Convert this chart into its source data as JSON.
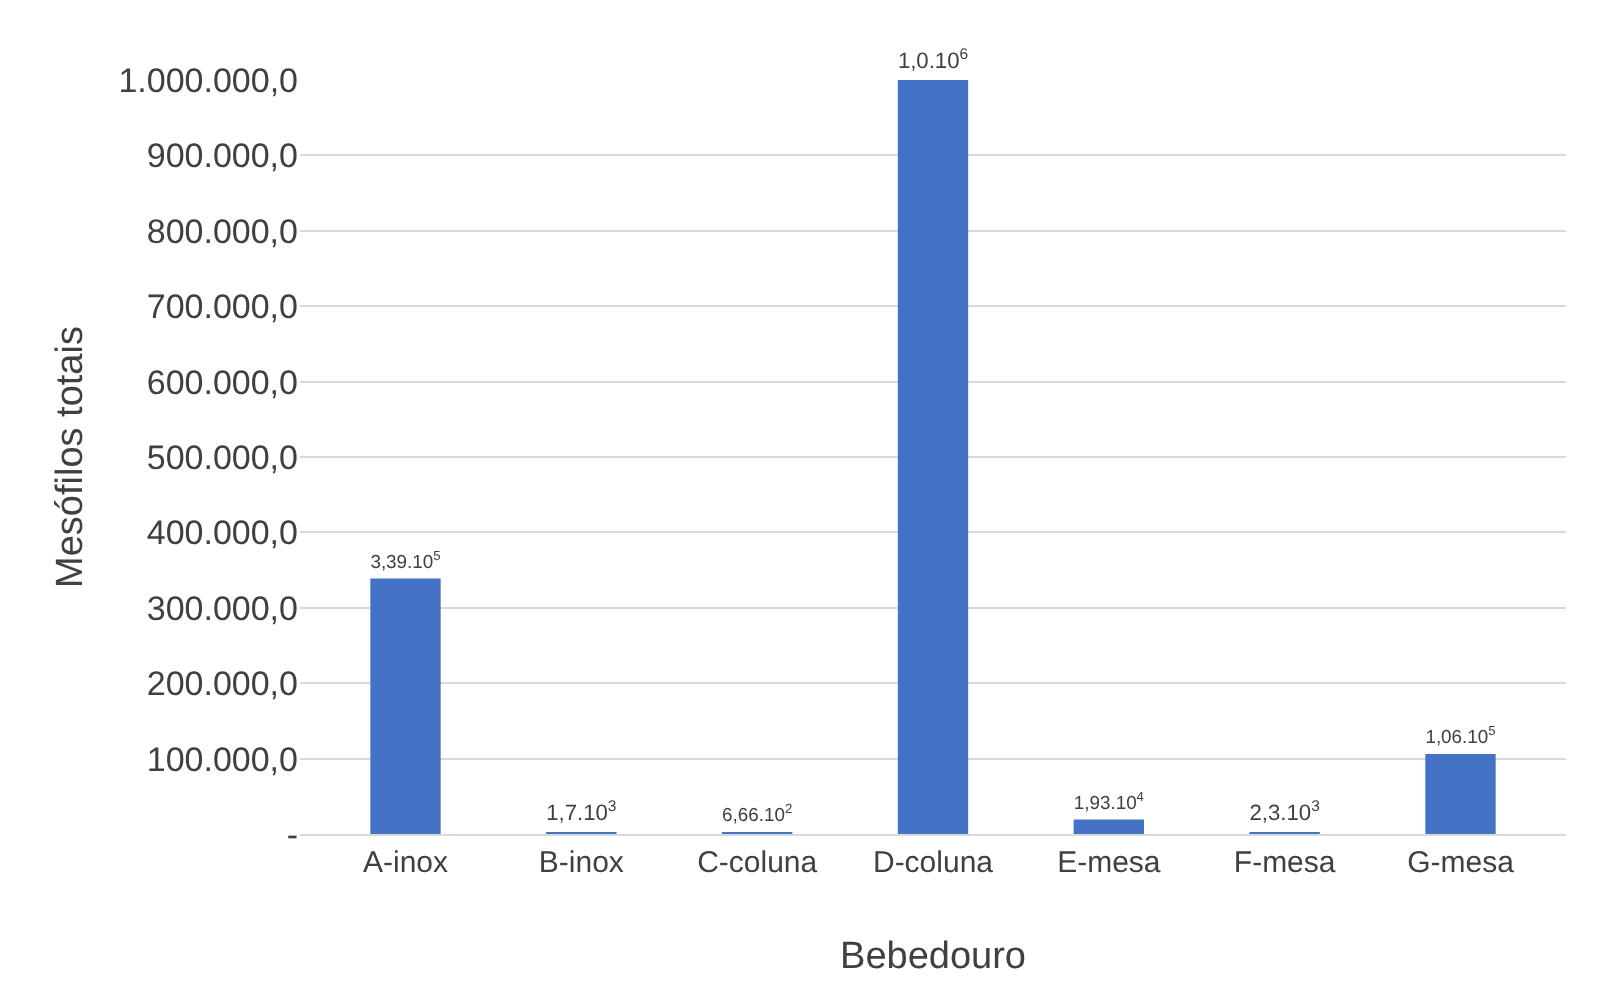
{
  "chart_data": {
    "type": "bar",
    "xlabel": "Bebedouro",
    "ylabel": "Mesófilos totais",
    "categories": [
      "A-inox",
      "B-inox",
      "C-coluna",
      "D-coluna",
      "E-mesa",
      "F-mesa",
      "G-mesa"
    ],
    "values": [
      339000,
      1700,
      666,
      1000000,
      19300,
      2300,
      106000
    ],
    "value_labels": [
      "3,39.10$^{5}$",
      "1,7.10$^{3}$",
      "6,66.10$^{2}$",
      "1,0.10$^{6}$",
      "1,93.10$^{4}$",
      "2,3.10$^{3}$",
      "1,06.10$^{5}$"
    ],
    "color": "#4472c4",
    "ylim": [
      0,
      1000000
    ],
    "yticks": [
      {
        "value": 0,
        "label": "-"
      },
      {
        "value": 100000,
        "label": "100.000,0"
      },
      {
        "value": 200000,
        "label": "200.000,0"
      },
      {
        "value": 300000,
        "label": "300.000,0"
      },
      {
        "value": 400000,
        "label": "400.000,0"
      },
      {
        "value": 500000,
        "label": "500.000,0"
      },
      {
        "value": 600000,
        "label": "600.000,0"
      },
      {
        "value": 700000,
        "label": "700.000,0"
      },
      {
        "value": 800000,
        "label": "800.000,0"
      },
      {
        "value": 900000,
        "label": "900.000,0"
      },
      {
        "value": 1000000,
        "label": "1.000.000,0"
      }
    ],
    "grid": true
  }
}
